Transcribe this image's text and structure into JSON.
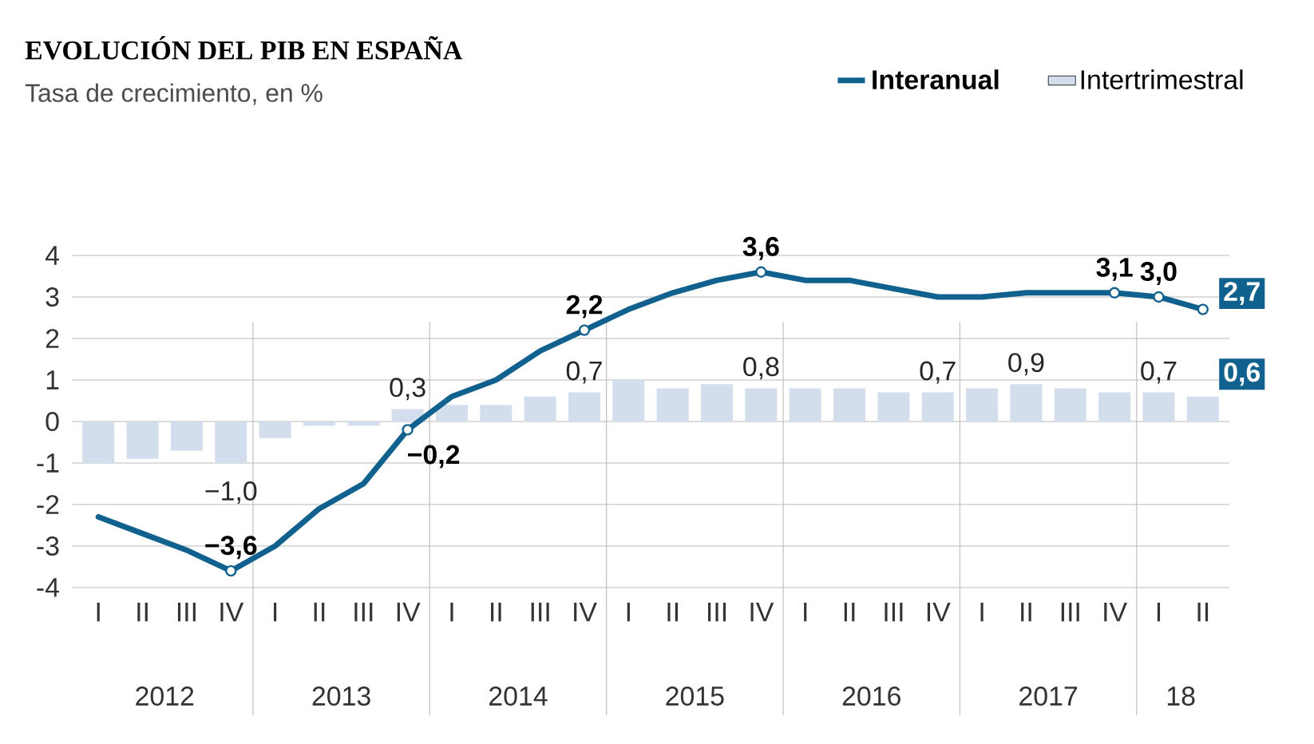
{
  "chart_data": {
    "type": "line",
    "title": "EVOLUCIÓN DEL PIB EN ESPAÑA",
    "subtitle": "Tasa de crecimiento, en %",
    "categories": [
      "I",
      "II",
      "III",
      "IV",
      "I",
      "II",
      "III",
      "IV",
      "I",
      "II",
      "III",
      "IV",
      "I",
      "II",
      "III",
      "IV",
      "I",
      "II",
      "III",
      "IV",
      "I",
      "II",
      "III",
      "IV",
      "I",
      "II"
    ],
    "annotations": [
      "2012",
      "2013",
      "2014",
      "2015",
      "2016",
      "2017",
      "18"
    ],
    "series": [
      {
        "name": "Interanual",
        "color": "#11618f",
        "values": [
          -2.3,
          -2.7,
          -3.1,
          -3.6,
          -3.0,
          -2.1,
          -1.5,
          -0.2,
          0.6,
          1.0,
          1.7,
          2.2,
          2.7,
          3.1,
          3.4,
          3.6,
          3.4,
          3.4,
          3.2,
          3.0,
          3.0,
          3.1,
          3.1,
          3.1,
          3.0,
          2.7
        ],
        "value_labels": [
          null,
          null,
          null,
          "−3,6",
          null,
          null,
          null,
          "−0,2",
          null,
          null,
          null,
          "2,2",
          null,
          null,
          null,
          "3,6",
          null,
          null,
          null,
          null,
          null,
          null,
          null,
          "3,1",
          "3,0",
          "2,7"
        ]
      },
      {
        "name": "Intertrimestral",
        "type": "bar",
        "color": "#d3deec",
        "values": [
          -1.0,
          -0.9,
          -0.7,
          -1.0,
          -0.4,
          -0.1,
          -0.1,
          0.3,
          0.4,
          0.4,
          0.6,
          0.7,
          1.0,
          0.8,
          0.9,
          0.8,
          0.8,
          0.8,
          0.7,
          0.7,
          0.8,
          0.9,
          0.8,
          0.7,
          0.7,
          0.6
        ],
        "value_labels": [
          null,
          null,
          null,
          "−1,0",
          null,
          null,
          null,
          "0,3",
          null,
          null,
          null,
          "0,7",
          null,
          null,
          null,
          "0,8",
          null,
          null,
          null,
          "0,7",
          null,
          "0,9",
          null,
          null,
          "0,7",
          "0,6"
        ]
      }
    ],
    "ylim": [
      -4,
      4
    ],
    "yticks": [
      -4,
      -3,
      -2,
      -1,
      0,
      1,
      2,
      3,
      4
    ],
    "grid": "y",
    "legend": "top right"
  }
}
